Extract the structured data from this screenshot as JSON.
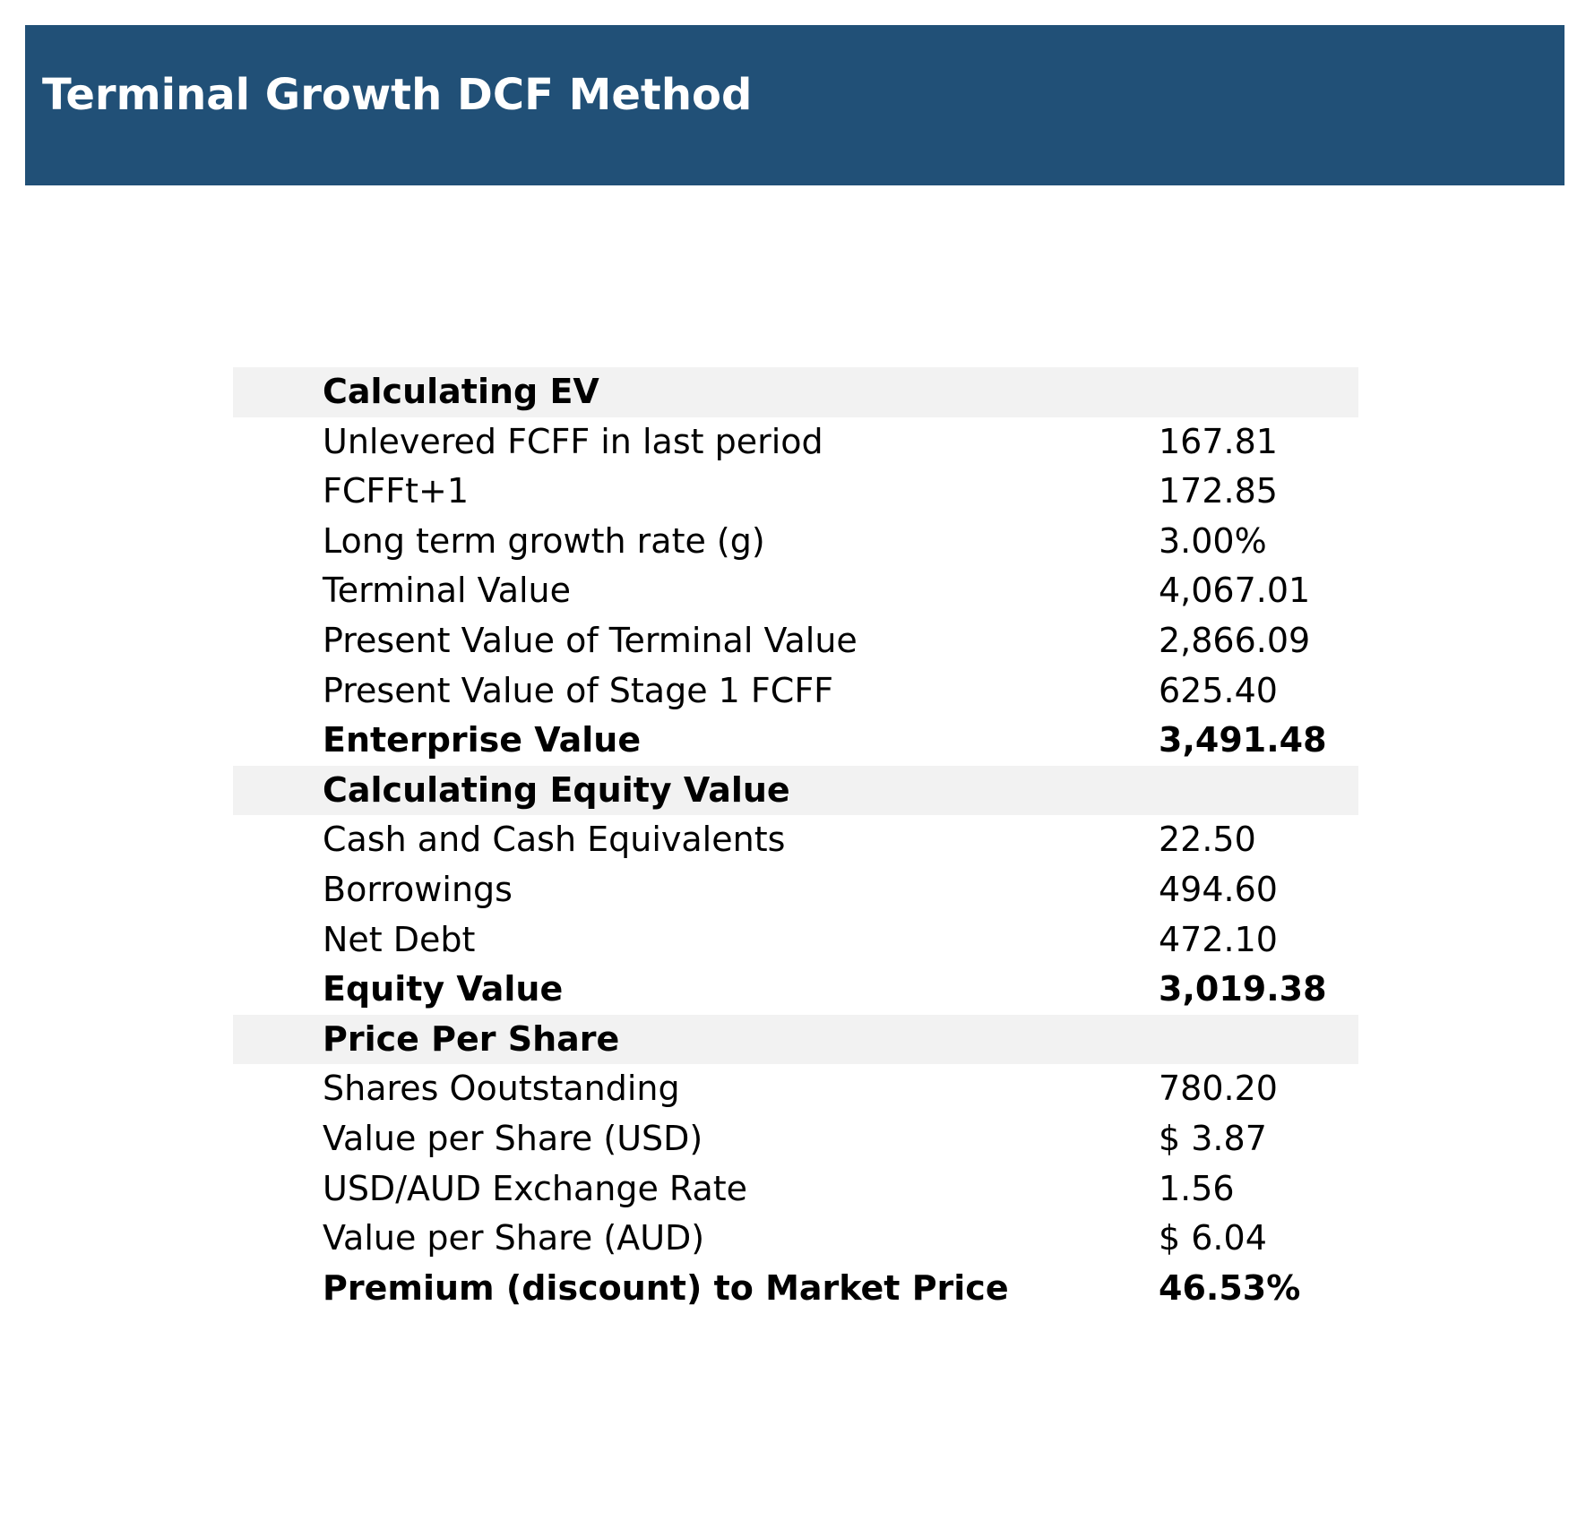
{
  "header": {
    "title": "Terminal Growth DCF Method",
    "background_color": "#215077",
    "text_color": "#ffffff"
  },
  "section_background_color": "#f2f2f2",
  "sections": [
    {
      "title": "Calculating EV",
      "rows": [
        {
          "label": "Unlevered FCFF in last period",
          "value": "167.81"
        },
        {
          "label": "FCFFt+1",
          "value": "172.85"
        },
        {
          "label": "Long term growth rate (g)",
          "value": "3.00%"
        },
        {
          "label": "Terminal Value",
          "value": "4,067.01"
        },
        {
          "label": "Present Value of Terminal Value",
          "value": "2,866.09"
        },
        {
          "label": "Present Value of Stage 1 FCFF",
          "value": "625.40"
        },
        {
          "label": "Enterprise Value",
          "value": "3,491.48"
        }
      ]
    },
    {
      "title": "Calculating Equity Value",
      "rows": [
        {
          "label": "Cash and Cash Equivalents",
          "value": "22.50"
        },
        {
          "label": "Borrowings",
          "value": "494.60"
        },
        {
          "label": "Net Debt",
          "value": "472.10"
        },
        {
          "label": "Equity Value",
          "value": "3,019.38"
        }
      ]
    },
    {
      "title": "Price Per Share",
      "rows": [
        {
          "label": "Shares Ooutstanding",
          "value": "780.20"
        },
        {
          "label": "Value per Share (USD)",
          "value": "$ 3.87"
        },
        {
          "label": "USD/AUD Exchange Rate",
          "value": "1.56"
        },
        {
          "label": "Value per Share (AUD)",
          "value": "$ 6.04"
        },
        {
          "label": "Premium (discount) to Market Price",
          "value": "46.53%"
        }
      ]
    }
  ]
}
